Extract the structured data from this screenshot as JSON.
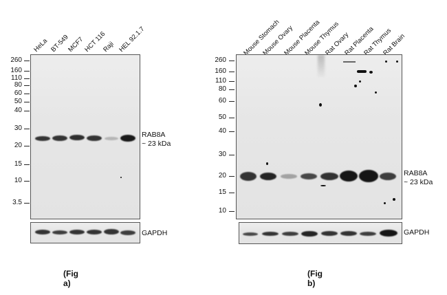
{
  "fig_a": {
    "lanes": [
      "HeLa",
      "BT-549",
      "MCF7",
      "HCT 116",
      "Raji",
      "HEL 92.1.7"
    ],
    "markers": [
      "260",
      "160",
      "110",
      "80",
      "60",
      "50",
      "40",
      "30",
      "20",
      "15",
      "10",
      "3.5"
    ],
    "target_label": "RAB8A",
    "target_size": "~ 23 kDa",
    "loading_label": "GAPDH",
    "caption": "(Fig a)",
    "band_intensity": [
      0.85,
      0.85,
      0.88,
      0.85,
      0.25,
      0.95
    ]
  },
  "fig_b": {
    "lanes": [
      "Mouse Stomach",
      "Mouse Ovary",
      "Mouse Placenta",
      "Mouse Thymus",
      "Rat Ovary",
      "Rat Placenta",
      "Rat Thymus",
      "Rat Brain"
    ],
    "markers": [
      "260",
      "160",
      "110",
      "80",
      "60",
      "50",
      "40",
      "30",
      "20",
      "15",
      "10"
    ],
    "target_label": "RAB8A",
    "target_size": "~ 23 kDa",
    "loading_label": "GAPDH",
    "caption": "(Fig b)",
    "band_intensity": [
      0.85,
      0.9,
      0.35,
      0.75,
      0.85,
      0.95,
      0.95,
      0.8
    ]
  }
}
